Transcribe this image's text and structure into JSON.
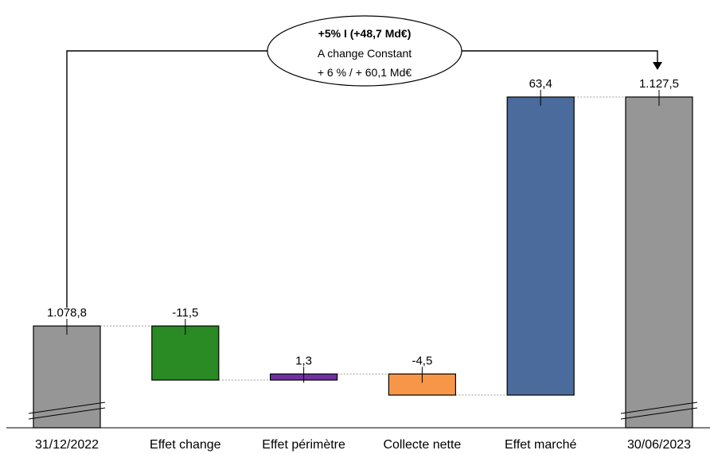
{
  "chart_data": {
    "type": "bar",
    "subtype": "waterfall",
    "categories": [
      "31/12/2022",
      "Effet change",
      "Effet périmètre",
      "Collecte nette",
      "Effet marché",
      "30/06/2023"
    ],
    "values": [
      1078.8,
      -11.5,
      1.3,
      -4.5,
      63.4,
      1127.5
    ],
    "value_labels": [
      "1.078,8",
      "-11,5",
      "1,3",
      "-4,5",
      "63,4",
      "1.127,5"
    ],
    "kinds": [
      "total",
      "delta",
      "delta",
      "delta",
      "delta",
      "total"
    ],
    "colors": [
      "#969696",
      "#2a8a24",
      "#7030a0",
      "#f79646",
      "#4a6b9b",
      "#969696"
    ],
    "axis_broken": true,
    "title": "",
    "annotation": {
      "line1": "+5% I (+48,7 Md€)",
      "line2": "A change Constant",
      "line3": "+ 6 % / + 60,1 Md€"
    }
  }
}
